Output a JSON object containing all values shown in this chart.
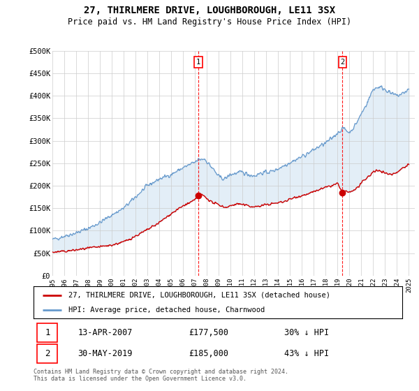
{
  "title": "27, THIRLMERE DRIVE, LOUGHBOROUGH, LE11 3SX",
  "subtitle": "Price paid vs. HM Land Registry's House Price Index (HPI)",
  "legend_property": "27, THIRLMERE DRIVE, LOUGHBOROUGH, LE11 3SX (detached house)",
  "legend_hpi": "HPI: Average price, detached house, Charnwood",
  "sale1_date": "13-APR-2007",
  "sale1_price": "£177,500",
  "sale1_hpi": "30% ↓ HPI",
  "sale2_date": "30-MAY-2019",
  "sale2_price": "£185,000",
  "sale2_hpi": "43% ↓ HPI",
  "footnote": "Contains HM Land Registry data © Crown copyright and database right 2024.\nThis data is licensed under the Open Government Licence v3.0.",
  "property_color": "#cc0000",
  "hpi_color": "#6699cc",
  "hpi_fill_color": "#d8e8f5",
  "sale1_x": 2007.28,
  "sale2_x": 2019.41,
  "ylim": [
    0,
    500000
  ],
  "xlim_start": 1995.0,
  "xlim_end": 2025.5,
  "yticks": [
    0,
    50000,
    100000,
    150000,
    200000,
    250000,
    300000,
    350000,
    400000,
    450000,
    500000
  ],
  "ytick_labels": [
    "£0",
    "£50K",
    "£100K",
    "£150K",
    "£200K",
    "£250K",
    "£300K",
    "£350K",
    "£400K",
    "£450K",
    "£500K"
  ],
  "xticks": [
    1995,
    1996,
    1997,
    1998,
    1999,
    2000,
    2001,
    2002,
    2003,
    2004,
    2005,
    2006,
    2007,
    2008,
    2009,
    2010,
    2011,
    2012,
    2013,
    2014,
    2015,
    2016,
    2017,
    2018,
    2019,
    2020,
    2021,
    2022,
    2023,
    2024,
    2025
  ]
}
